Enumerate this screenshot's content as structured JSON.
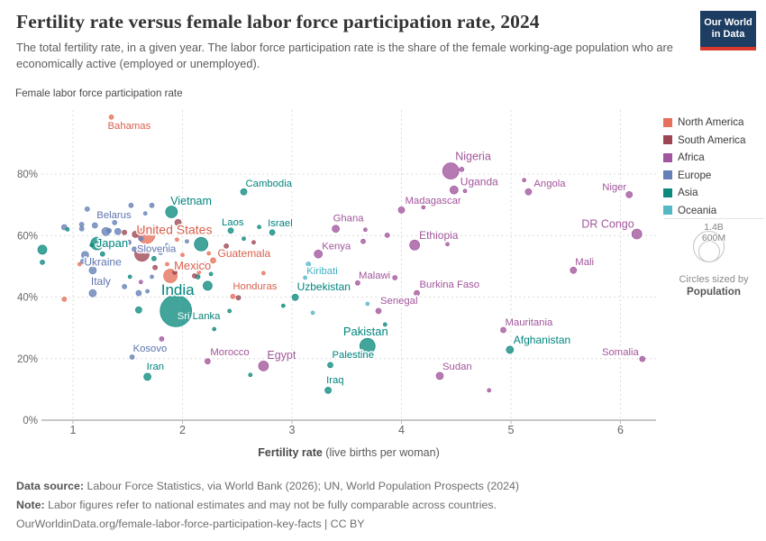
{
  "header": {
    "title": "Fertility rate versus female labor force participation rate, 2024",
    "subtitle": "The total fertility rate, in a given year. The labor force participation rate is the share of the female working-age population who are economically active (employed or unemployed).",
    "logo": {
      "line1": "Our World",
      "line2": "in Data",
      "bg": "#1d3d63",
      "stripe": "#d9382d"
    }
  },
  "axes": {
    "y_title": "Female labor force participation rate",
    "y_ticks": [
      0,
      20,
      40,
      60,
      80
    ],
    "y_tick_suffix": "%",
    "x_ticks": [
      1,
      2,
      3,
      4,
      5,
      6
    ],
    "x_title_bold": "Fertility rate",
    "x_title_rest": " (live births per woman)"
  },
  "legend": {
    "items": [
      {
        "label": "North America",
        "color": "#e6715b",
        "label_color": "#d7604d"
      },
      {
        "label": "South America",
        "color": "#9d4653",
        "label_color": "#8c3f4b"
      },
      {
        "label": "Africa",
        "color": "#a2559c",
        "label_color": "#a2559c"
      },
      {
        "label": "Europe",
        "color": "#6480b6",
        "label_color": "#5e74ae"
      },
      {
        "label": "Asia",
        "color": "#0d8a7e",
        "label_color": "#00847e"
      },
      {
        "label": "Oceania",
        "color": "#52b8c4",
        "label_color": "#3fafbf"
      }
    ],
    "size": {
      "big_label": "1.4B",
      "small_label": "600M",
      "caption_1": "Circles sized by",
      "caption_2": "Population"
    }
  },
  "chart_data": {
    "type": "scatter",
    "title": "Fertility rate versus female labor force participation rate, 2024",
    "xlabel": "Fertility rate (live births per woman)",
    "ylabel": "Female labor force participation rate",
    "xlim": [
      0.6,
      6.35
    ],
    "ylim": [
      0,
      100
    ],
    "grid": true,
    "legend_position": "right",
    "points": [
      {
        "label": "Bahamas",
        "x": 1.35,
        "y": 98.5,
        "c": "North America",
        "r": 2.5,
        "lox": -4,
        "loy": 13
      },
      {
        "label": "Cambodia",
        "x": 2.56,
        "y": 74.2,
        "c": "Asia",
        "r": 3.5,
        "lox": 2,
        "loy": -6
      },
      {
        "label": "Nigeria",
        "x": 4.45,
        "y": 81,
        "c": "Africa",
        "r": 9,
        "lox": 5,
        "loy": -12,
        "fs": 12.5
      },
      {
        "label": "Uganda",
        "x": 4.48,
        "y": 74.8,
        "c": "Africa",
        "r": 4.5,
        "lox": 7,
        "loy": -5,
        "fs": 12
      },
      {
        "label": "Angola",
        "x": 5.16,
        "y": 74.2,
        "c": "Africa",
        "r": 3.5,
        "lox": 6,
        "loy": -6
      },
      {
        "label": "Niger",
        "x": 6.08,
        "y": 73.3,
        "c": "Africa",
        "r": 3.5,
        "anchor": "end",
        "lox": -3,
        "loy": -5
      },
      {
        "label": "Madagascar",
        "x": 4.0,
        "y": 68.3,
        "c": "Africa",
        "r": 3.5,
        "lox": 4,
        "loy": -7
      },
      {
        "label": "Vietnam",
        "x": 1.9,
        "y": 67.7,
        "c": "Asia",
        "r": 6.5,
        "lox": -1,
        "loy": -8,
        "fs": 12.5
      },
      {
        "label": "Belarus",
        "x": 1.2,
        "y": 63.3,
        "c": "Europe",
        "r": 3,
        "lox": 2,
        "loy": -8
      },
      {
        "label": "Laos",
        "x": 2.44,
        "y": 61.6,
        "c": "Asia",
        "r": 3,
        "lox": -10,
        "loy": -6
      },
      {
        "label": "Israel",
        "x": 2.82,
        "y": 61,
        "c": "Asia",
        "r": 3,
        "lox": -5,
        "loy": -7
      },
      {
        "label": "Ghana",
        "x": 3.4,
        "y": 62.2,
        "c": "Africa",
        "r": 4,
        "lox": -3,
        "loy": -8
      },
      {
        "label": "DR Congo",
        "x": 6.15,
        "y": 60.5,
        "c": "Africa",
        "r": 5.5,
        "anchor": "end",
        "lox": -3,
        "loy": -7,
        "fs": 12.5
      },
      {
        "label": "United States",
        "x": 1.67,
        "y": 60.2,
        "c": "North America",
        "r": 9.5,
        "lox": -11,
        "loy": -1,
        "fs": 14
      },
      {
        "label": "Ethiopia",
        "x": 4.12,
        "y": 56.9,
        "c": "Africa",
        "r": 5.5,
        "lox": 5,
        "loy": -7,
        "fs": 12
      },
      {
        "label": "Japan",
        "x": 1.22,
        "y": 57.4,
        "c": "Asia",
        "r": 7,
        "lox": -1,
        "loy": 4,
        "fs": 13
      },
      {
        "label": "Slovenia",
        "x": 1.56,
        "y": 55.6,
        "c": "Europe",
        "r": 2.5,
        "lox": 3,
        "loy": 3
      },
      {
        "label": "Kenya",
        "x": 3.24,
        "y": 54,
        "c": "Africa",
        "r": 4.5,
        "lox": 4,
        "loy": -5
      },
      {
        "label": "Guatemala",
        "x": 2.28,
        "y": 51.9,
        "c": "North America",
        "r": 3,
        "lox": 5,
        "loy": -4,
        "fs": 12
      },
      {
        "label": "Mexico",
        "x": 1.89,
        "y": 46.9,
        "c": "North America",
        "r": 7.5,
        "lox": 4,
        "loy": -7,
        "fs": 13
      },
      {
        "label": "Ukraine",
        "x": 1.11,
        "y": 53.7,
        "c": "Europe",
        "r": 4,
        "lox": -1,
        "loy": 12,
        "fs": 12
      },
      {
        "label": "Kiribati",
        "x": 3.15,
        "y": 50.7,
        "c": "Oceania",
        "r": 2.5,
        "lox": -2,
        "loy": 11
      },
      {
        "label": "Mali",
        "x": 5.57,
        "y": 48.7,
        "c": "Africa",
        "r": 3.5,
        "lox": 2,
        "loy": -6
      },
      {
        "label": "Italy",
        "x": 1.18,
        "y": 41.3,
        "c": "Europe",
        "r": 4,
        "lox": -2,
        "loy": -9,
        "fs": 12
      },
      {
        "label": "Malawi",
        "x": 3.94,
        "y": 46.3,
        "c": "Africa",
        "r": 2.5,
        "anchor": "end",
        "lox": -5,
        "loy": 1
      },
      {
        "label": "Burkina Faso",
        "x": 4.14,
        "y": 41.3,
        "c": "Africa",
        "r": 3,
        "lox": 3,
        "loy": -6
      },
      {
        "label": "India",
        "x": 1.94,
        "y": 35.5,
        "c": "Asia",
        "r": 17.5,
        "anchor": "middle",
        "lox": 2,
        "loy": -18,
        "fs": 17
      },
      {
        "label": "Honduras",
        "x": 2.46,
        "y": 40.2,
        "c": "North America",
        "r": 2.5,
        "lox": 0,
        "loy": -8
      },
      {
        "label": "Uzbekistan",
        "x": 3.03,
        "y": 39.9,
        "c": "Asia",
        "r": 3.5,
        "lox": 2,
        "loy": -8,
        "fs": 12
      },
      {
        "label": "Senegal",
        "x": 3.79,
        "y": 35.5,
        "c": "Africa",
        "r": 3,
        "lox": 2,
        "loy": -8
      },
      {
        "label": "Sri Lanka",
        "x": 2.29,
        "y": 29.6,
        "c": "Asia",
        "r": 2,
        "lox": -41,
        "loy": -11,
        "label_parts": [
          {
            "t": "Sri ",
            "c": "#ffffff",
            "halo": false
          },
          {
            "t": "Lanka",
            "c": "#0b8078",
            "halo": true
          }
        ]
      },
      {
        "label": "Mauritania",
        "x": 4.93,
        "y": 29.3,
        "c": "Africa",
        "r": 3,
        "lox": 2,
        "loy": -5
      },
      {
        "label": "Pakistan",
        "x": 3.69,
        "y": 24.1,
        "c": "Asia",
        "r": 8.5,
        "anchor": "middle",
        "lox": -2,
        "loy": -12,
        "fs": 13
      },
      {
        "label": "Afghanistan",
        "x": 4.99,
        "y": 22.9,
        "c": "Asia",
        "r": 4,
        "lox": 4,
        "loy": -7,
        "fs": 12
      },
      {
        "label": "Somalia",
        "x": 6.2,
        "y": 19.9,
        "c": "Africa",
        "r": 3,
        "anchor": "end",
        "lox": -4,
        "loy": -4
      },
      {
        "label": "Kosovo",
        "x": 1.54,
        "y": 20.5,
        "c": "Europe",
        "r": 2.5,
        "lox": 1,
        "loy": -6
      },
      {
        "label": "Morocco",
        "x": 2.23,
        "y": 19.1,
        "c": "Africa",
        "r": 3,
        "lox": 3,
        "loy": -7
      },
      {
        "label": "Egypt",
        "x": 2.74,
        "y": 17.6,
        "c": "Africa",
        "r": 5.5,
        "lox": 4,
        "loy": -8,
        "fs": 12.5
      },
      {
        "label": "Palestine",
        "x": 3.35,
        "y": 17.9,
        "c": "Asia",
        "r": 3,
        "lox": 2,
        "loy": -8
      },
      {
        "label": "Sudan",
        "x": 4.35,
        "y": 14.4,
        "c": "Africa",
        "r": 4,
        "lox": 3,
        "loy": -7
      },
      {
        "label": "Iran",
        "x": 1.68,
        "y": 14.1,
        "c": "Asia",
        "r": 4,
        "lox": -1,
        "loy": -8
      },
      {
        "label": "Iraq",
        "x": 3.33,
        "y": 9.7,
        "c": "Asia",
        "r": 3.5,
        "lox": -2,
        "loy": -8
      },
      {
        "x": 0.92,
        "y": 62.7,
        "c": "Europe",
        "r": 3
      },
      {
        "x": 1.08,
        "y": 62.2,
        "c": "Europe",
        "r": 2.5
      },
      {
        "x": 1.13,
        "y": 68.6,
        "c": "Europe",
        "r": 2.5
      },
      {
        "x": 1.53,
        "y": 69.8,
        "c": "Europe",
        "r": 2.5
      },
      {
        "x": 1.72,
        "y": 69.8,
        "c": "Europe",
        "r": 2.5
      },
      {
        "x": 1.66,
        "y": 67.2,
        "c": "Europe",
        "r": 2
      },
      {
        "x": 1.38,
        "y": 64.2,
        "c": "Europe",
        "r": 2.5
      },
      {
        "x": 1.33,
        "y": 61.6,
        "c": "Europe",
        "r": 2.5
      },
      {
        "x": 1.41,
        "y": 61.3,
        "c": "Europe",
        "r": 3.5
      },
      {
        "x": 1.3,
        "y": 61.3,
        "c": "Europe",
        "r": 4.5
      },
      {
        "x": 1.08,
        "y": 63.6,
        "c": "Europe",
        "r": 2.5
      },
      {
        "x": 1.44,
        "y": 57.2,
        "c": "Europe",
        "r": 2.5
      },
      {
        "x": 1.51,
        "y": 57.8,
        "c": "Europe",
        "r": 2.5
      },
      {
        "x": 1.62,
        "y": 59,
        "c": "Europe",
        "r": 2.5
      },
      {
        "x": 1.8,
        "y": 54.5,
        "c": "Europe",
        "r": 2.5
      },
      {
        "x": 1.86,
        "y": 56.9,
        "c": "Europe",
        "r": 2
      },
      {
        "x": 2.04,
        "y": 58.1,
        "c": "Europe",
        "r": 2
      },
      {
        "x": 1.72,
        "y": 46.6,
        "c": "Europe",
        "r": 2
      },
      {
        "x": 1.47,
        "y": 43.4,
        "c": "Europe",
        "r": 2.5
      },
      {
        "x": 1.6,
        "y": 41.3,
        "c": "Europe",
        "r": 3
      },
      {
        "x": 1.68,
        "y": 41.9,
        "c": "Europe",
        "r": 2
      },
      {
        "x": 1.09,
        "y": 51.6,
        "c": "Europe",
        "r": 2.5
      },
      {
        "x": 1.18,
        "y": 48.7,
        "c": "Europe",
        "r": 4
      },
      {
        "x": 2.74,
        "y": 54.5,
        "c": "Europe",
        "r": 2
      },
      {
        "x": 0.72,
        "y": 55.4,
        "c": "Asia",
        "r": 5
      },
      {
        "x": 0.72,
        "y": 51.3,
        "c": "Asia",
        "r": 2.5
      },
      {
        "x": 0.95,
        "y": 62,
        "c": "Asia",
        "r": 2
      },
      {
        "x": 1.17,
        "y": 56.9,
        "c": "Asia",
        "r": 2
      },
      {
        "x": 1.29,
        "y": 56.9,
        "c": "Asia",
        "r": 2
      },
      {
        "x": 1.27,
        "y": 54,
        "c": "Asia",
        "r": 2.5
      },
      {
        "x": 1.74,
        "y": 52.5,
        "c": "Asia",
        "r": 2.5
      },
      {
        "x": 2.17,
        "y": 57.2,
        "c": "Asia",
        "r": 7.5
      },
      {
        "x": 2.23,
        "y": 43.7,
        "c": "Asia",
        "r": 5
      },
      {
        "x": 2.04,
        "y": 41.9,
        "c": "Asia",
        "r": 2.5
      },
      {
        "x": 1.52,
        "y": 46.6,
        "c": "Asia",
        "r": 2
      },
      {
        "x": 1.6,
        "y": 35.8,
        "c": "Asia",
        "r": 3.5
      },
      {
        "x": 2.26,
        "y": 47.5,
        "c": "Asia",
        "r": 2
      },
      {
        "x": 2.14,
        "y": 46.6,
        "c": "Asia",
        "r": 2.5
      },
      {
        "x": 2.7,
        "y": 62.8,
        "c": "Asia",
        "r": 2
      },
      {
        "x": 2.56,
        "y": 59,
        "c": "Asia",
        "r": 2
      },
      {
        "x": 2.92,
        "y": 37.2,
        "c": "Asia",
        "r": 2
      },
      {
        "x": 3.85,
        "y": 31.1,
        "c": "Asia",
        "r": 2
      },
      {
        "x": 2.43,
        "y": 35.5,
        "c": "Asia",
        "r": 2
      },
      {
        "x": 2.62,
        "y": 14.7,
        "c": "Asia",
        "r": 2
      },
      {
        "x": 0.92,
        "y": 39.3,
        "c": "North America",
        "r": 2.5
      },
      {
        "x": 1.06,
        "y": 50.7,
        "c": "North America",
        "r": 2
      },
      {
        "x": 1.95,
        "y": 58.7,
        "c": "North America",
        "r": 2
      },
      {
        "x": 2.0,
        "y": 53.7,
        "c": "North America",
        "r": 2
      },
      {
        "x": 1.86,
        "y": 50.7,
        "c": "North America",
        "r": 2
      },
      {
        "x": 2.15,
        "y": 48.1,
        "c": "North America",
        "r": 2
      },
      {
        "x": 2.24,
        "y": 54.2,
        "c": "North America",
        "r": 2
      },
      {
        "x": 2.74,
        "y": 47.8,
        "c": "North America",
        "r": 2
      },
      {
        "x": 1.96,
        "y": 64.2,
        "c": "South America",
        "r": 3.5
      },
      {
        "x": 1.47,
        "y": 61,
        "c": "South America",
        "r": 2.5
      },
      {
        "x": 1.57,
        "y": 60.4,
        "c": "South America",
        "r": 3.5
      },
      {
        "x": 1.63,
        "y": 54,
        "c": "South America",
        "r": 8
      },
      {
        "x": 1.75,
        "y": 49.6,
        "c": "South America",
        "r": 2.5
      },
      {
        "x": 1.93,
        "y": 48.1,
        "c": "South America",
        "r": 2.5
      },
      {
        "x": 2.11,
        "y": 46.9,
        "c": "South America",
        "r": 2.5
      },
      {
        "x": 2.65,
        "y": 57.8,
        "c": "South America",
        "r": 2
      },
      {
        "x": 2.4,
        "y": 56.6,
        "c": "South America",
        "r": 2.5
      },
      {
        "x": 2.51,
        "y": 39.8,
        "c": "South America",
        "r": 2.5
      },
      {
        "x": 1.62,
        "y": 44.9,
        "c": "Africa",
        "r": 2
      },
      {
        "x": 1.81,
        "y": 26.4,
        "c": "Africa",
        "r": 2.5
      },
      {
        "x": 2.2,
        "y": 50.7,
        "c": "Africa",
        "r": 2
      },
      {
        "x": 3.67,
        "y": 61.9,
        "c": "Africa",
        "r": 2
      },
      {
        "x": 3.65,
        "y": 58.1,
        "c": "Africa",
        "r": 2.5
      },
      {
        "x": 3.87,
        "y": 60.1,
        "c": "Africa",
        "r": 2.5
      },
      {
        "x": 4.42,
        "y": 57.2,
        "c": "Africa",
        "r": 2
      },
      {
        "x": 4.2,
        "y": 69.2,
        "c": "Africa",
        "r": 2
      },
      {
        "x": 4.55,
        "y": 81.5,
        "c": "Africa",
        "r": 2.5
      },
      {
        "x": 4.58,
        "y": 74.5,
        "c": "Africa",
        "r": 2
      },
      {
        "x": 5.12,
        "y": 78,
        "c": "Africa",
        "r": 2
      },
      {
        "x": 3.6,
        "y": 44.6,
        "c": "Africa",
        "r": 2.5
      },
      {
        "x": 4.8,
        "y": 9.7,
        "c": "Africa",
        "r": 2
      },
      {
        "x": 3.19,
        "y": 34.9,
        "c": "Oceania",
        "r": 2
      },
      {
        "x": 3.69,
        "y": 37.8,
        "c": "Oceania",
        "r": 2
      },
      {
        "x": 3.12,
        "y": 46.3,
        "c": "Oceania",
        "r": 2
      }
    ]
  },
  "footer": {
    "source_label": "Data source:",
    "source_text": " Labour Force Statistics, via World Bank (2026); UN, World Population Prospects (2024)",
    "note_label": "Note:",
    "note_text": " Labor figures refer to national estimates and may not be fully comparable across countries.",
    "link": "OurWorldinData.org/female-labor-force-participation-key-facts",
    "license": " | CC BY"
  }
}
